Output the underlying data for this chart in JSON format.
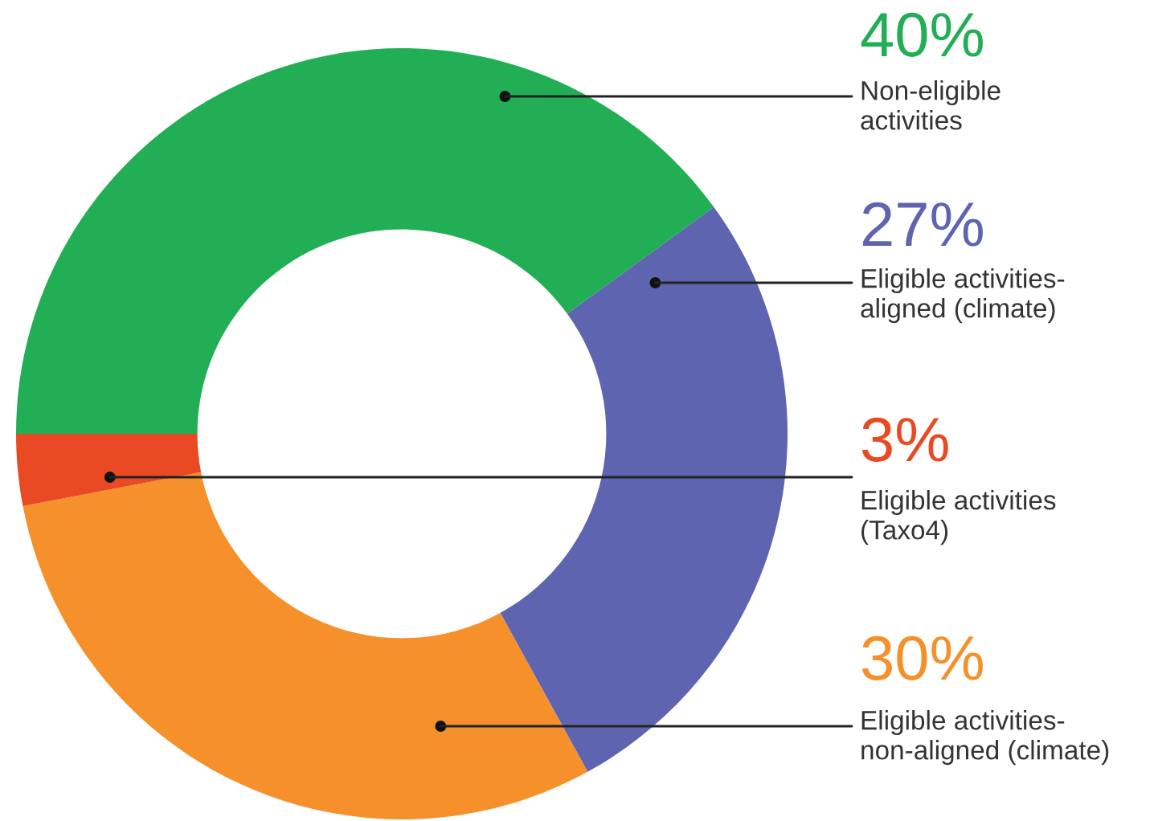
{
  "chart_data": {
    "type": "donut",
    "categories": [
      "Non-eligible\nactivities",
      "Eligible activities-\naligned (climate)",
      "Eligible activities-\nnon-aligned (climate)",
      "Eligible activities\n(Taxo4)"
    ],
    "values": [
      40,
      27,
      30,
      3
    ],
    "colors": [
      "#22ae55",
      "#5f64b0",
      "#f5902a",
      "#ea4a23"
    ],
    "value_labels": [
      "40%",
      "27%",
      "30%",
      "3%"
    ]
  }
}
